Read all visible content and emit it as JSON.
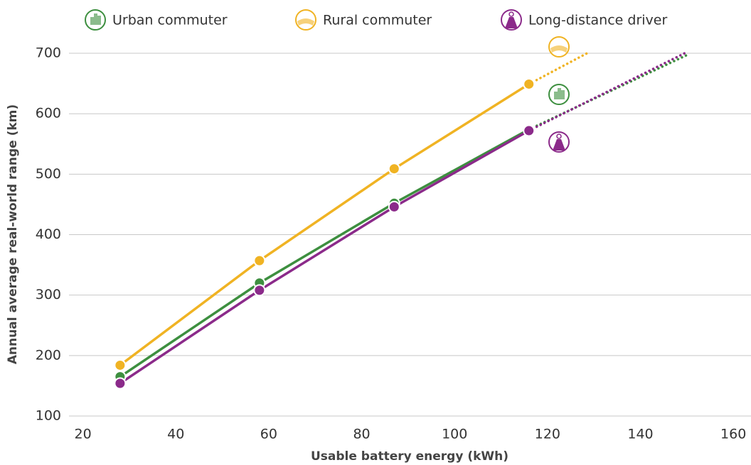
{
  "chart_data": {
    "type": "line",
    "x_label": "Usable battery energy (kWh)",
    "y_label": "Annual average real-world range (km)",
    "xlim": [
      17,
      163.8
    ],
    "xticks": [
      20,
      40,
      60,
      80,
      100,
      120,
      140,
      160
    ],
    "ylim": [
      100,
      720
    ],
    "yticks": [
      100,
      200,
      300,
      400,
      500,
      600,
      700
    ],
    "grid": true,
    "legend": "top",
    "series": [
      {
        "name": "Urban commuter",
        "color": "#3d8f3f",
        "x": [
          28,
          58,
          87,
          116
        ],
        "values": [
          165,
          320,
          452,
          574
        ],
        "projection_x": [
          116,
          150
        ],
        "projection_values": [
          574,
          697
        ]
      },
      {
        "name": "Rural commuter",
        "color": "#f0b323",
        "x": [
          28,
          58,
          87,
          116
        ],
        "values": [
          184,
          357,
          509,
          649
        ],
        "projection_x": [
          116,
          128.5
        ],
        "projection_values": [
          649,
          700
        ]
      },
      {
        "name": "Long-distance driver",
        "color": "#8b2a8a",
        "x": [
          28,
          58,
          87,
          116
        ],
        "values": [
          154,
          308,
          446,
          572
        ],
        "projection_x": [
          116,
          149.5
        ],
        "projection_values": [
          572,
          700
        ]
      }
    ]
  }
}
